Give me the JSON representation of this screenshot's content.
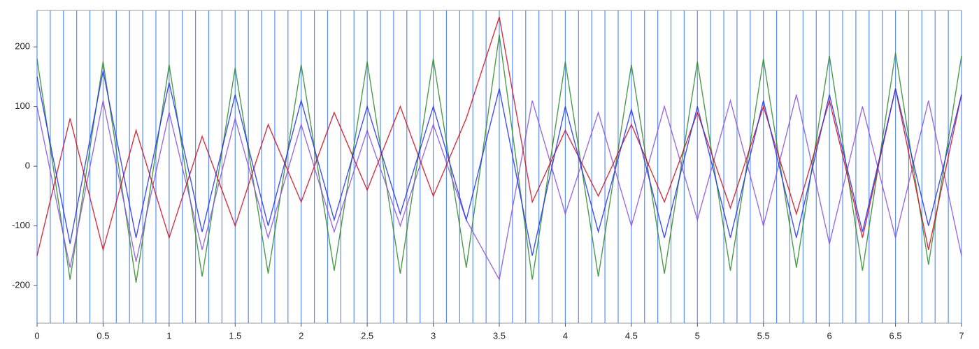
{
  "chart_data": {
    "type": "line",
    "x": [
      0,
      0.25,
      0.5,
      0.75,
      1,
      1.25,
      1.5,
      1.75,
      2,
      2.25,
      2.5,
      2.75,
      3,
      3.25,
      3.5,
      3.75,
      4,
      4.25,
      4.5,
      4.75,
      5,
      5.25,
      5.5,
      5.75,
      6,
      6.25,
      6.5,
      6.75,
      7
    ],
    "series": [
      {
        "color": "#2e8b2e",
        "values": [
          180,
          -190,
          175,
          -195,
          170,
          -185,
          165,
          -180,
          170,
          -175,
          175,
          -180,
          180,
          -170,
          220,
          -190,
          175,
          -185,
          170,
          -180,
          175,
          -175,
          180,
          -170,
          185,
          -175,
          190,
          -165,
          185
        ]
      },
      {
        "color": "#8855dd",
        "values": [
          100,
          -170,
          110,
          -160,
          90,
          -140,
          80,
          -120,
          70,
          -110,
          60,
          -100,
          70,
          -90,
          -190,
          110,
          -80,
          90,
          -100,
          100,
          -90,
          110,
          -100,
          120,
          -130,
          100,
          -120,
          110,
          -150
        ]
      },
      {
        "color": "#cc1122",
        "values": [
          -150,
          80,
          -140,
          60,
          -120,
          50,
          -100,
          70,
          -60,
          90,
          -40,
          100,
          -50,
          80,
          250,
          -60,
          60,
          -50,
          70,
          -60,
          90,
          -70,
          100,
          -80,
          110,
          -120,
          130,
          -140,
          120
        ]
      },
      {
        "color": "#2233ee",
        "values": [
          150,
          -130,
          160,
          -120,
          140,
          -110,
          120,
          -100,
          110,
          -90,
          100,
          -80,
          100,
          -90,
          130,
          -150,
          100,
          -110,
          95,
          -120,
          100,
          -120,
          110,
          -120,
          120,
          -110,
          130,
          -100,
          120
        ]
      }
    ],
    "markers": {
      "color": "#5a8ef5",
      "x": [
        0,
        0.1,
        0.2,
        0.3,
        0.4,
        0.5,
        0.6,
        0.7,
        0.8,
        0.9,
        1,
        1.1,
        1.2,
        1.3,
        1.4,
        1.5,
        1.6,
        1.7,
        1.8,
        1.9,
        2,
        2.1,
        2.2,
        2.3,
        2.4,
        2.5,
        2.6,
        2.7,
        2.8,
        2.9,
        3,
        3.1,
        3.2,
        3.3,
        3.4,
        3.5,
        3.6,
        3.7,
        3.8,
        3.9,
        4,
        4.1,
        4.2,
        4.3,
        4.4,
        4.5,
        4.6,
        4.7,
        4.8,
        4.9,
        5,
        5.1,
        5.2,
        5.3,
        5.4,
        5.5,
        5.6,
        5.7,
        5.8,
        5.9,
        6,
        6.1,
        6.2,
        6.3,
        6.4,
        6.5,
        6.6,
        6.7,
        6.8,
        6.9,
        7
      ]
    },
    "xlim": [
      0,
      7
    ],
    "xticks": [
      0,
      0.5,
      1,
      1.5,
      2,
      2.5,
      3,
      3.5,
      4,
      4.5,
      5,
      5.5,
      6,
      6.5,
      7
    ],
    "ylim": [
      -263,
      261
    ],
    "yticks": [
      200,
      100,
      0,
      -100,
      -200
    ]
  }
}
